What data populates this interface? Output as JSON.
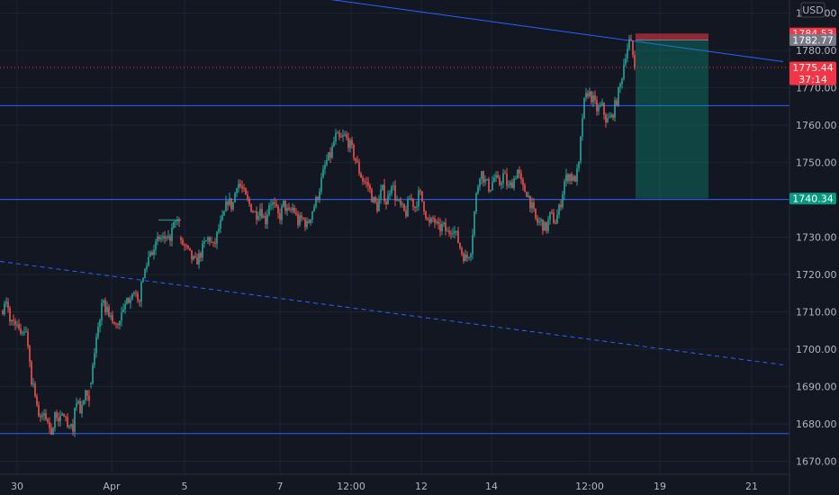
{
  "chart_data": {
    "type": "candlestick",
    "currency_label": "USD",
    "y_ticks": [
      1670,
      1680,
      1690,
      1700,
      1710,
      1720,
      1730,
      1740,
      1750,
      1760,
      1770,
      1780,
      1790
    ],
    "y_tick_labels": [
      "1670.00",
      "1680.00",
      "1690.00",
      "1700.00",
      "1710.00",
      "1720.00",
      "1730.00",
      "1740.00",
      "1750.00",
      "1760.00",
      "1770.00",
      "1780.00",
      "1790.00"
    ],
    "ylim": [
      1666.5,
      1793.5
    ],
    "x_labels": [
      "30",
      "Apr",
      "5",
      "7",
      "12:00",
      "12",
      "14",
      "12:00",
      "19",
      "21"
    ],
    "horizontal_levels": [
      1765.2,
      1740.1,
      1677.4
    ],
    "trendline_top": {
      "from": [
        0,
        1798.0
      ],
      "to": [
        870,
        1777.0
      ]
    },
    "trendline_dashed": {
      "from": [
        0,
        1723.5
      ],
      "to": [
        870,
        1695.8
      ]
    },
    "position": {
      "entry": 1782.77,
      "stop": 1784.53,
      "target": 1740.34
    },
    "current_price": {
      "value": "1775.44",
      "countdown": "37:14"
    },
    "price_badges": {
      "stop": "1784.53",
      "entry": "1782.77",
      "target": "1740.34"
    },
    "price_path": [
      [
        1711,
        1712,
        1707,
        1708,
        1704,
        1706,
        1703,
        1692,
        1688,
        1680,
        1683,
        1680,
        1678,
        1683,
        1681,
        1683,
        1678,
        1679,
        1687,
        1683,
        1688,
        1685
      ],
      [
        1690,
        1705,
        1712,
        1710,
        1706,
        1708,
        1712,
        1716,
        1712,
        1720,
        1726,
        1728,
        1730,
        1728,
        1733,
        1734
      ],
      [
        1729,
        1727,
        1725,
        1723,
        1725,
        1728,
        1730,
        1727,
        1732,
        1735,
        1740,
        1738,
        1745,
        1743,
        1740,
        1738,
        1736,
        1738,
        1734,
        1740,
        1738,
        1735,
        1739,
        1736,
        1738,
        1734,
        1735,
        1733,
        1737,
        1740,
        1745,
        1750,
        1752,
        1757,
        1756,
        1757,
        1755,
        1752,
        1748,
        1745,
        1744,
        1740,
        1738,
        1743,
        1739,
        1745,
        1740,
        1738,
        1736,
        1741,
        1738,
        1742,
        1738,
        1733,
        1735,
        1732,
        1733,
        1731,
        1733,
        1730,
        1726,
        1724,
        1727,
        1740,
        1748,
        1745,
        1743,
        1746,
        1744,
        1747,
        1743,
        1745,
        1748,
        1743,
        1742,
        1738,
        1734,
        1734,
        1732,
        1736,
        1734,
        1738,
        1745,
        1747,
        1745,
        1748,
        1765,
        1769,
        1767,
        1764,
        1765,
        1761,
        1762,
        1766,
        1771,
        1779,
        1783,
        1776
      ]
    ]
  }
}
